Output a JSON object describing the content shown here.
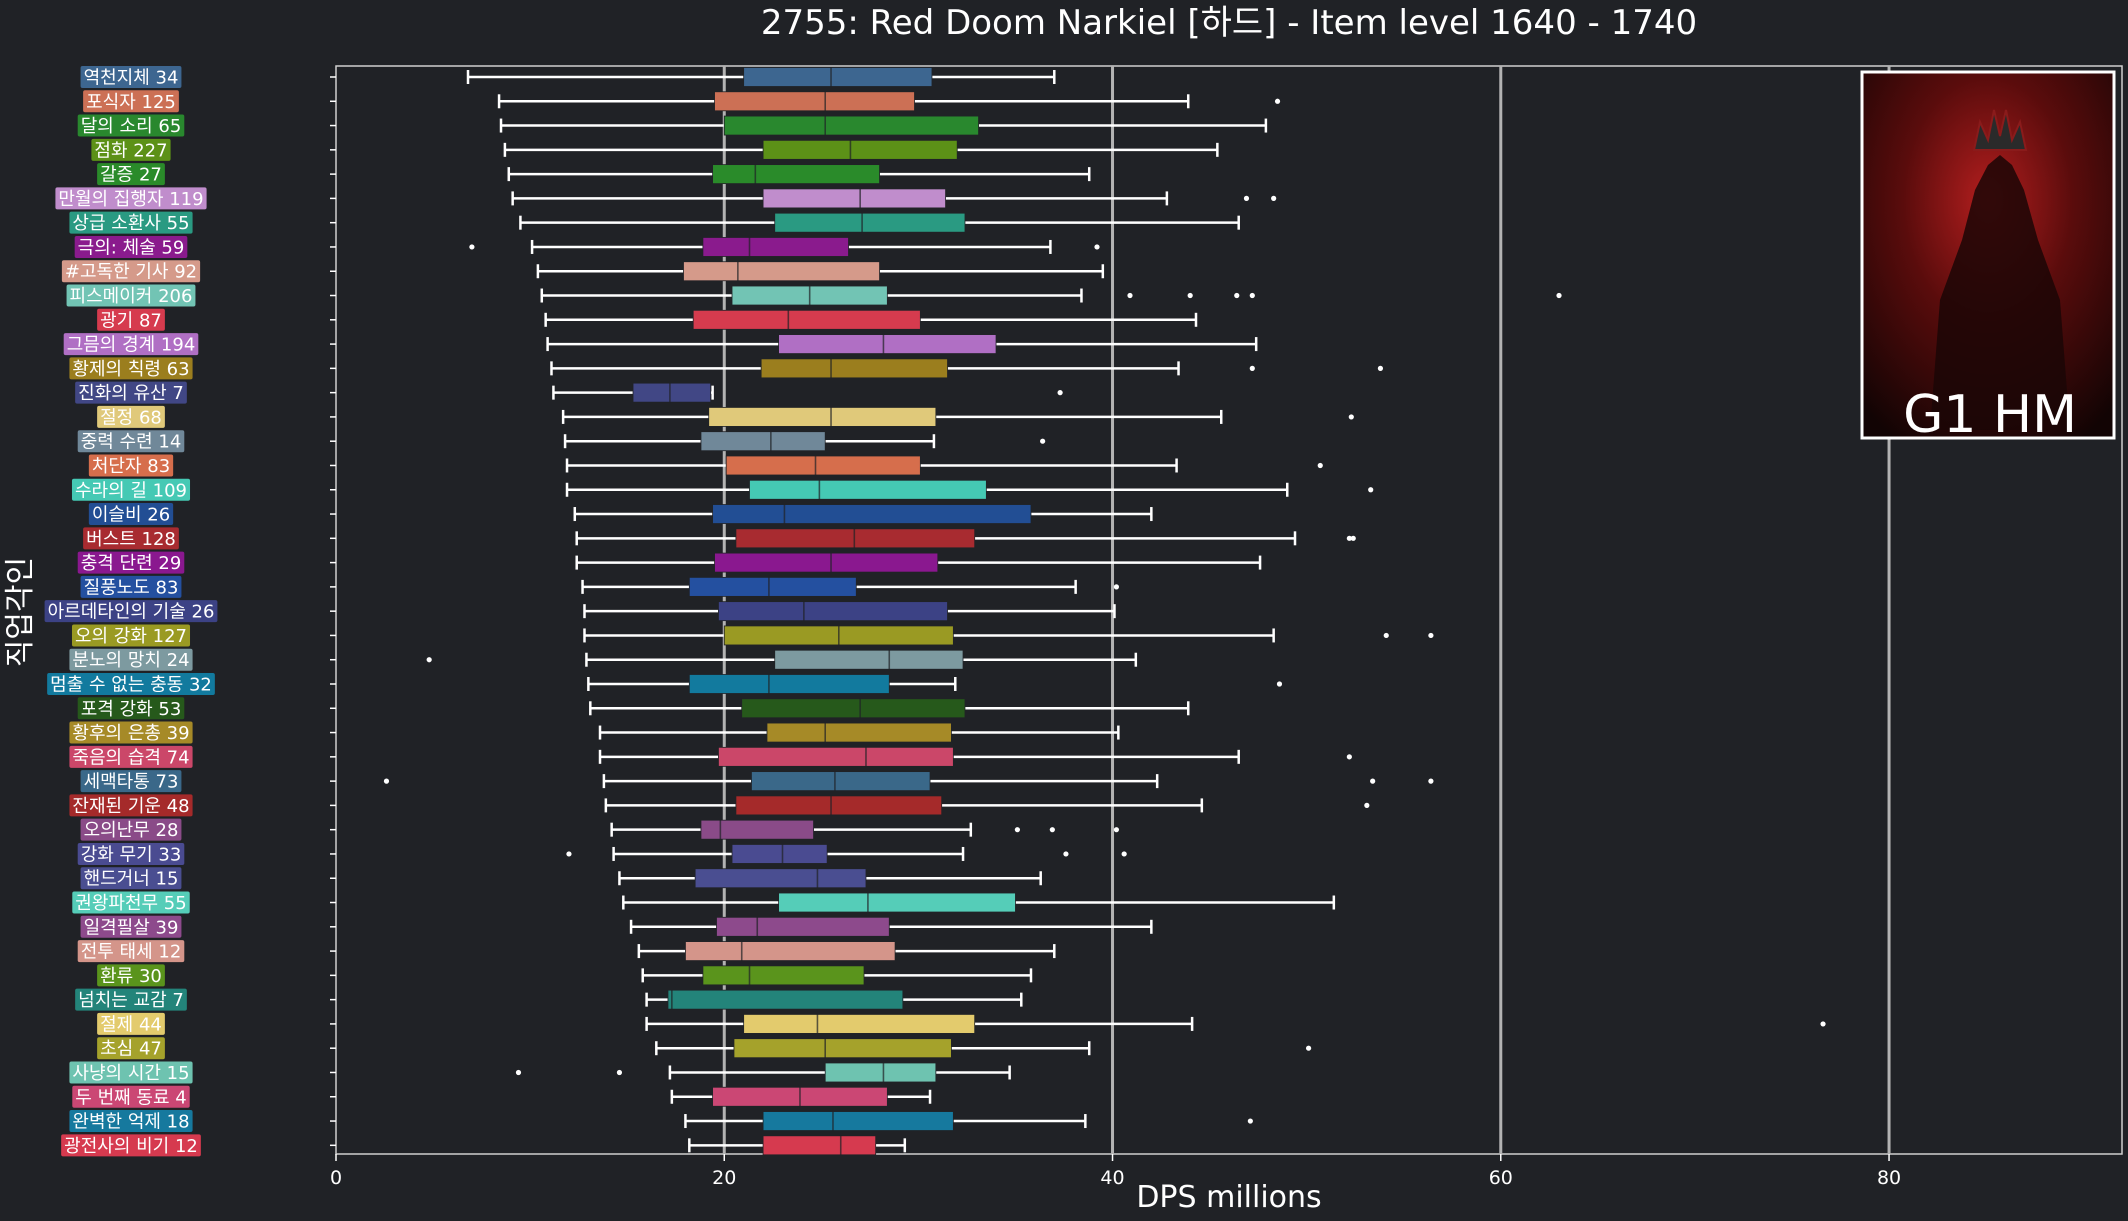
{
  "chart_data": {
    "type": "boxplot",
    "title": "2755: Red Doom Narkiel [하드] - Item level 1640 - 1740",
    "xlabel": "DPS millions",
    "ylabel": "직업각인",
    "xlim": [
      0,
      92
    ],
    "xticks": [
      0,
      20,
      40,
      60,
      80
    ],
    "grid": "vertical at 20, 40, 60, 80",
    "badge": "G1 HM",
    "categories": [
      {
        "label": "역천지체 34",
        "color": "#3d6690",
        "whisker_low": 6.8,
        "q1": 21.0,
        "median": 25.5,
        "q3": 30.7,
        "whisker_high": 37.0,
        "outliers": []
      },
      {
        "label": "포식자 125",
        "color": "#cc7055",
        "whisker_low": 8.4,
        "q1": 19.5,
        "median": 25.2,
        "q3": 29.8,
        "whisker_high": 43.9,
        "outliers": [
          48.5
        ]
      },
      {
        "label": "달의 소리 65",
        "color": "#29882e",
        "whisker_low": 8.5,
        "q1": 20.0,
        "median": 25.2,
        "q3": 33.1,
        "whisker_high": 47.9,
        "outliers": []
      },
      {
        "label": "점화 227",
        "color": "#5c9117",
        "whisker_low": 8.7,
        "q1": 22.0,
        "median": 26.5,
        "q3": 32.0,
        "whisker_high": 45.4,
        "outliers": []
      },
      {
        "label": "갈증 27",
        "color": "#2a8b2a",
        "whisker_low": 8.9,
        "q1": 19.4,
        "median": 21.6,
        "q3": 28.0,
        "whisker_high": 38.8,
        "outliers": []
      },
      {
        "label": "만월의 집행자 119",
        "color": "#c08dcc",
        "whisker_low": 9.1,
        "q1": 22.0,
        "median": 27.0,
        "q3": 31.4,
        "whisker_high": 42.8,
        "outliers": [
          46.9,
          48.3
        ]
      },
      {
        "label": "상급 소환사 55",
        "color": "#2a9a82",
        "whisker_low": 9.5,
        "q1": 22.6,
        "median": 27.1,
        "q3": 32.4,
        "whisker_high": 46.5,
        "outliers": []
      },
      {
        "label": "극의: 체술 59",
        "color": "#8a1b8d",
        "whisker_low": 10.1,
        "q1": 18.9,
        "median": 21.3,
        "q3": 26.4,
        "whisker_high": 36.8,
        "outliers": [
          7.0,
          39.2
        ]
      },
      {
        "label": "#고독한 기사 92",
        "color": "#d59a8a",
        "whisker_low": 10.4,
        "q1": 17.9,
        "median": 20.7,
        "q3": 28.0,
        "whisker_high": 39.5,
        "outliers": []
      },
      {
        "label": "피스메이커 206",
        "color": "#72c4b4",
        "whisker_low": 10.6,
        "q1": 20.4,
        "median": 24.4,
        "q3": 28.4,
        "whisker_high": 38.4,
        "outliers": [
          40.9,
          44.0,
          46.4,
          47.2,
          63.0
        ]
      },
      {
        "label": "광기 87",
        "color": "#d63b4e",
        "whisker_low": 10.8,
        "q1": 18.4,
        "median": 23.3,
        "q3": 30.1,
        "whisker_high": 44.3,
        "outliers": []
      },
      {
        "label": "그믐의 경계 194",
        "color": "#b06fc4",
        "whisker_low": 10.9,
        "q1": 22.8,
        "median": 28.2,
        "q3": 34.0,
        "whisker_high": 47.4,
        "outliers": []
      },
      {
        "label": "황제의 칙령 63",
        "color": "#9b7e1e",
        "whisker_low": 11.1,
        "q1": 21.9,
        "median": 25.5,
        "q3": 31.5,
        "whisker_high": 43.4,
        "outliers": [
          47.2,
          53.8
        ]
      },
      {
        "label": "진화의 유산 7",
        "color": "#414785",
        "whisker_low": 11.2,
        "q1": 15.3,
        "median": 17.2,
        "q3": 19.3,
        "whisker_high": 19.4,
        "outliers": [
          37.3
        ]
      },
      {
        "label": "절정 68",
        "color": "#e0c97a",
        "whisker_low": 11.7,
        "q1": 19.2,
        "median": 25.5,
        "q3": 30.9,
        "whisker_high": 45.6,
        "outliers": [
          52.3
        ]
      },
      {
        "label": "중력 수련 14",
        "color": "#708899",
        "whisker_low": 11.8,
        "q1": 18.8,
        "median": 22.4,
        "q3": 25.2,
        "whisker_high": 30.8,
        "outliers": [
          36.4
        ]
      },
      {
        "label": "처단자 83",
        "color": "#d66e4c",
        "whisker_low": 11.9,
        "q1": 20.1,
        "median": 24.7,
        "q3": 30.1,
        "whisker_high": 43.3,
        "outliers": [
          50.7
        ]
      },
      {
        "label": "수라의 길 109",
        "color": "#45c9b4",
        "whisker_low": 11.9,
        "q1": 21.3,
        "median": 24.9,
        "q3": 33.5,
        "whisker_high": 49.0,
        "outliers": [
          53.3
        ]
      },
      {
        "label": "이슬비 26",
        "color": "#224e94",
        "whisker_low": 12.3,
        "q1": 19.4,
        "median": 23.1,
        "q3": 35.8,
        "whisker_high": 42.0,
        "outliers": []
      },
      {
        "label": "버스트 128",
        "color": "#a82b30",
        "whisker_low": 12.4,
        "q1": 20.6,
        "median": 26.7,
        "q3": 32.9,
        "whisker_high": 49.4,
        "outliers": [
          52.2,
          52.4
        ]
      },
      {
        "label": "충격 단련 29",
        "color": "#8a188f",
        "whisker_low": 12.4,
        "q1": 19.5,
        "median": 25.5,
        "q3": 31.0,
        "whisker_high": 47.6,
        "outliers": []
      },
      {
        "label": "질풍노도 83",
        "color": "#2450a0",
        "whisker_low": 12.7,
        "q1": 18.2,
        "median": 22.3,
        "q3": 26.8,
        "whisker_high": 38.1,
        "outliers": [
          40.2
        ]
      },
      {
        "label": "아르데타인의 기술 26",
        "color": "#3c4285",
        "whisker_low": 12.8,
        "q1": 19.7,
        "median": 24.1,
        "q3": 31.5,
        "whisker_high": 40.1,
        "outliers": []
      },
      {
        "label": "오의 강화 127",
        "color": "#9a9a23",
        "whisker_low": 12.8,
        "q1": 20.0,
        "median": 25.9,
        "q3": 31.8,
        "whisker_high": 48.3,
        "outliers": [
          54.1,
          56.4
        ]
      },
      {
        "label": "분노의 망치 24",
        "color": "#7d9aa0",
        "whisker_low": 12.9,
        "q1": 22.6,
        "median": 28.5,
        "q3": 32.3,
        "whisker_high": 41.2,
        "outliers": [
          4.8
        ]
      },
      {
        "label": "멈출 수 없는 충동 32",
        "color": "#127a9e",
        "whisker_low": 13.0,
        "q1": 18.2,
        "median": 22.3,
        "q3": 28.5,
        "whisker_high": 31.9,
        "outliers": [
          48.6
        ]
      },
      {
        "label": "포격 강화 53",
        "color": "#26591b",
        "whisker_low": 13.1,
        "q1": 20.9,
        "median": 27.0,
        "q3": 32.4,
        "whisker_high": 43.9,
        "outliers": []
      },
      {
        "label": "황후의 은총 39",
        "color": "#a68a27",
        "whisker_low": 13.6,
        "q1": 22.2,
        "median": 25.2,
        "q3": 31.7,
        "whisker_high": 40.3,
        "outliers": []
      },
      {
        "label": "죽음의 습격 74",
        "color": "#cb4769",
        "whisker_low": 13.6,
        "q1": 19.7,
        "median": 27.3,
        "q3": 31.8,
        "whisker_high": 46.5,
        "outliers": [
          52.2
        ]
      },
      {
        "label": "세맥타통 73",
        "color": "#3a6889",
        "whisker_low": 13.8,
        "q1": 21.4,
        "median": 25.7,
        "q3": 30.6,
        "whisker_high": 42.3,
        "outliers": [
          2.6,
          53.4,
          56.4
        ]
      },
      {
        "label": "잔재된 기운 48",
        "color": "#a52a2a",
        "whisker_low": 13.9,
        "q1": 20.6,
        "median": 25.5,
        "q3": 31.2,
        "whisker_high": 44.6,
        "outliers": [
          53.1
        ]
      },
      {
        "label": "오의난무 28",
        "color": "#8a4b88",
        "whisker_low": 14.2,
        "q1": 18.8,
        "median": 19.8,
        "q3": 24.6,
        "whisker_high": 32.7,
        "outliers": [
          35.1,
          36.9,
          40.2
        ]
      },
      {
        "label": "강화 무기 33",
        "color": "#4a4b91",
        "whisker_low": 14.3,
        "q1": 20.4,
        "median": 23.0,
        "q3": 25.3,
        "whisker_high": 32.3,
        "outliers": [
          12.0,
          37.6,
          40.6
        ]
      },
      {
        "label": "핸드거너 15",
        "color": "#4a4e91",
        "whisker_low": 14.6,
        "q1": 18.5,
        "median": 24.8,
        "q3": 27.3,
        "whisker_high": 36.3,
        "outliers": []
      },
      {
        "label": "권왕파천무 55",
        "color": "#55cdb8",
        "whisker_low": 14.8,
        "q1": 22.8,
        "median": 27.4,
        "q3": 35.0,
        "whisker_high": 51.4,
        "outliers": []
      },
      {
        "label": "일격필살 39",
        "color": "#8d4a8c",
        "whisker_low": 15.2,
        "q1": 19.6,
        "median": 21.7,
        "q3": 28.5,
        "whisker_high": 42.0,
        "outliers": []
      },
      {
        "label": "전투 태세 12",
        "color": "#d4958a",
        "whisker_low": 15.6,
        "q1": 18.0,
        "median": 20.9,
        "q3": 28.8,
        "whisker_high": 37.0,
        "outliers": []
      },
      {
        "label": "환류 30",
        "color": "#5a941c",
        "whisker_low": 15.8,
        "q1": 18.9,
        "median": 21.3,
        "q3": 27.2,
        "whisker_high": 35.8,
        "outliers": []
      },
      {
        "label": "넘치는 교감 7",
        "color": "#23847a",
        "whisker_low": 16.0,
        "q1": 17.1,
        "median": 17.3,
        "q3": 29.2,
        "whisker_high": 35.3,
        "outliers": []
      },
      {
        "label": "절제 44",
        "color": "#e3cb6d",
        "whisker_low": 16.0,
        "q1": 21.0,
        "median": 24.8,
        "q3": 32.9,
        "whisker_high": 44.1,
        "outliers": [
          76.6
        ]
      },
      {
        "label": "초심 47",
        "color": "#a5a22b",
        "whisker_low": 16.5,
        "q1": 20.5,
        "median": 25.2,
        "q3": 31.7,
        "whisker_high": 38.8,
        "outliers": [
          50.1
        ]
      },
      {
        "label": "사냥의 시간 15",
        "color": "#6ec3b0",
        "whisker_low": 17.2,
        "q1": 25.2,
        "median": 28.2,
        "q3": 30.9,
        "whisker_high": 34.7,
        "outliers": [
          9.4,
          14.6
        ]
      },
      {
        "label": "두 번째 동료 4",
        "color": "#cb4774",
        "whisker_low": 17.3,
        "q1": 19.4,
        "median": 23.9,
        "q3": 28.4,
        "whisker_high": 30.6,
        "outliers": []
      },
      {
        "label": "완벽한 억제 18",
        "color": "#16799e",
        "whisker_low": 18.0,
        "q1": 22.0,
        "median": 25.6,
        "q3": 31.8,
        "whisker_high": 38.6,
        "outliers": [
          47.1
        ]
      },
      {
        "label": "광전사의 비기 12",
        "color": "#d63a4f",
        "whisker_low": 18.2,
        "q1": 22.0,
        "median": 26.0,
        "q3": 27.8,
        "whisker_high": 29.3,
        "outliers": []
      }
    ]
  }
}
